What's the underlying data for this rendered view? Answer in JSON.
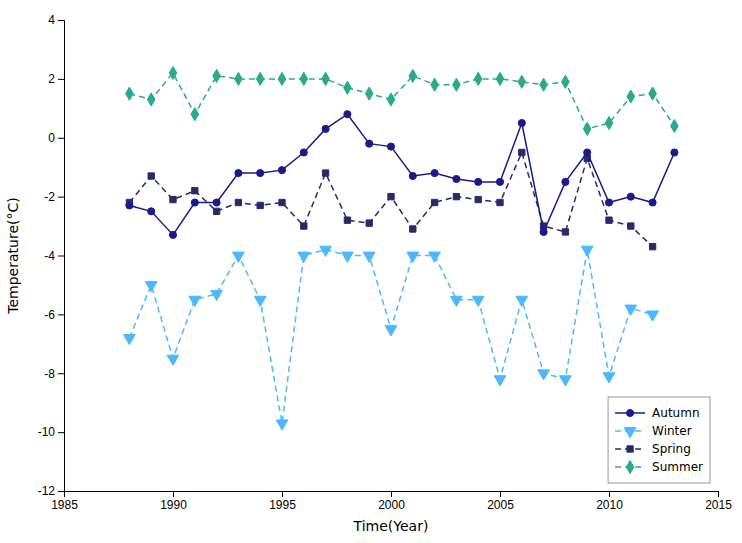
{
  "chart_data": {
    "type": "line",
    "xlabel": "Time(Year)",
    "ylabel": "Temperature(°C)",
    "x": [
      1988,
      1989,
      1990,
      1991,
      1992,
      1993,
      1994,
      1995,
      1996,
      1997,
      1998,
      1999,
      2000,
      2001,
      2002,
      2003,
      2004,
      2005,
      2006,
      2007,
      2008,
      2009,
      2010,
      2011,
      2012,
      2013
    ],
    "series": [
      {
        "name": "Autumn",
        "color": "#1a1a8c",
        "marker": "circle",
        "line_style": "solid",
        "values": [
          -2.3,
          -2.5,
          -3.3,
          -2.2,
          -2.2,
          -1.2,
          -1.2,
          -1.1,
          -0.5,
          0.3,
          0.8,
          -0.2,
          -0.3,
          -1.3,
          -1.2,
          -1.4,
          -1.5,
          -1.5,
          0.5,
          -3.2,
          -1.5,
          -0.5,
          -2.2,
          -2.0,
          -2.2,
          -0.5
        ]
      },
      {
        "name": "Winter",
        "color": "#4db8ff",
        "marker": "triangle-down",
        "line_style": "dashed",
        "values": [
          -6.8,
          -5.0,
          -7.5,
          -5.5,
          -5.3,
          -4.0,
          -5.5,
          -9.7,
          -4.0,
          -3.8,
          -4.0,
          -4.0,
          -6.5,
          -4.0,
          -4.0,
          -5.5,
          -5.5,
          -8.2,
          -5.5,
          -8.0,
          -8.2,
          -3.8,
          -8.1,
          -5.8,
          -6.0,
          null
        ]
      },
      {
        "name": "Spring",
        "color": "#2a2a6a",
        "marker": "square",
        "line_style": "dashed",
        "values": [
          -2.2,
          -1.3,
          -2.1,
          -1.8,
          -2.5,
          -2.2,
          -2.3,
          -2.2,
          -3.0,
          -1.2,
          -2.8,
          -2.9,
          -2.0,
          -3.1,
          -2.2,
          -2.0,
          -2.1,
          -2.2,
          -0.5,
          -3.0,
          -3.2,
          -0.7,
          -2.8,
          -3.0,
          -3.7,
          null
        ]
      },
      {
        "name": "Summer",
        "color": "#2aaa8a",
        "marker": "diamond",
        "line_style": "dashed",
        "values": [
          1.5,
          1.3,
          2.2,
          0.8,
          2.1,
          2.0,
          2.0,
          2.0,
          2.0,
          2.0,
          1.7,
          1.5,
          1.3,
          2.1,
          1.8,
          1.8,
          2.0,
          2.0,
          1.9,
          1.8,
          1.9,
          0.3,
          0.5,
          1.4,
          1.5,
          0.4
        ]
      }
    ],
    "xlim": [
      1985,
      2015
    ],
    "xticks": [
      1985,
      1990,
      1995,
      2000,
      2005,
      2010,
      2015
    ],
    "ylim": [
      -12,
      4
    ],
    "yticks": [
      -12,
      -10,
      -8,
      -6,
      -4,
      -2,
      0,
      2,
      4
    ],
    "legend": "lower right",
    "grid": false
  }
}
